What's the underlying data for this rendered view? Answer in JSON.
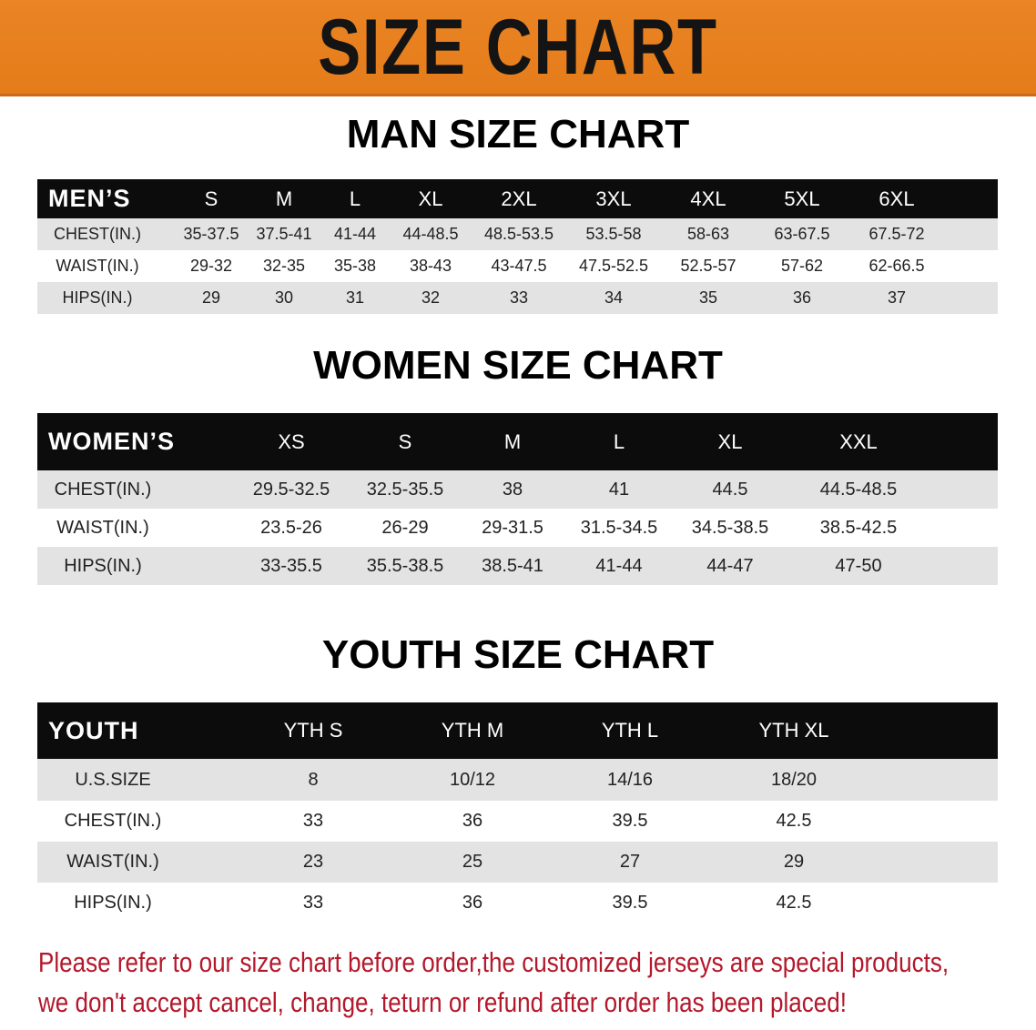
{
  "banner_title": "SIZE CHART",
  "colors": {
    "banner": "#E87F1E",
    "header_row": "#0C0C0C",
    "stripe": "#E3E3E3",
    "note": "#B3182B"
  },
  "men": {
    "title": "MAN SIZE CHART",
    "header": [
      "MEN’S",
      "S",
      "M",
      "L",
      "XL",
      "2XL",
      "3XL",
      "4XL",
      "5XL",
      "6XL"
    ],
    "rows": [
      [
        "CHEST(IN.)",
        "35-37.5",
        "37.5-41",
        "41-44",
        "44-48.5",
        "48.5-53.5",
        "53.5-58",
        "58-63",
        "63-67.5",
        "67.5-72"
      ],
      [
        "WAIST(IN.)",
        "29-32",
        "32-35",
        "35-38",
        "38-43",
        "43-47.5",
        "47.5-52.5",
        "52.5-57",
        "57-62",
        "62-66.5"
      ],
      [
        "HIPS(IN.)",
        "29",
        "30",
        "31",
        "32",
        "33",
        "34",
        "35",
        "36",
        "37"
      ]
    ]
  },
  "women": {
    "title": "WOMEN SIZE CHART",
    "header": [
      "WOMEN’S",
      "XS",
      "S",
      "M",
      "L",
      "XL",
      "XXL"
    ],
    "rows": [
      [
        "CHEST(IN.)",
        "29.5-32.5",
        "32.5-35.5",
        "38",
        "41",
        "44.5",
        "44.5-48.5"
      ],
      [
        "WAIST(IN.)",
        "23.5-26",
        "26-29",
        "29-31.5",
        "31.5-34.5",
        "34.5-38.5",
        "38.5-42.5"
      ],
      [
        "HIPS(IN.)",
        "33-35.5",
        "35.5-38.5",
        "38.5-41",
        "41-44",
        "44-47",
        "47-50"
      ]
    ]
  },
  "youth": {
    "title": "YOUTH SIZE CHART",
    "header": [
      "YOUTH",
      "YTH S",
      "YTH M",
      "YTH L",
      "YTH XL"
    ],
    "rows": [
      [
        "U.S.SIZE",
        "8",
        "10/12",
        "14/16",
        "18/20"
      ],
      [
        "CHEST(IN.)",
        "33",
        "36",
        "39.5",
        "42.5"
      ],
      [
        "WAIST(IN.)",
        "23",
        "25",
        "27",
        "29"
      ],
      [
        "HIPS(IN.)",
        "33",
        "36",
        "39.5",
        "42.5"
      ]
    ]
  },
  "notes": [
    "Please refer to our size chart before order,the customized jerseys are special products,",
    "we don't accept cancel, change, teturn or refund after order has been placed!"
  ]
}
